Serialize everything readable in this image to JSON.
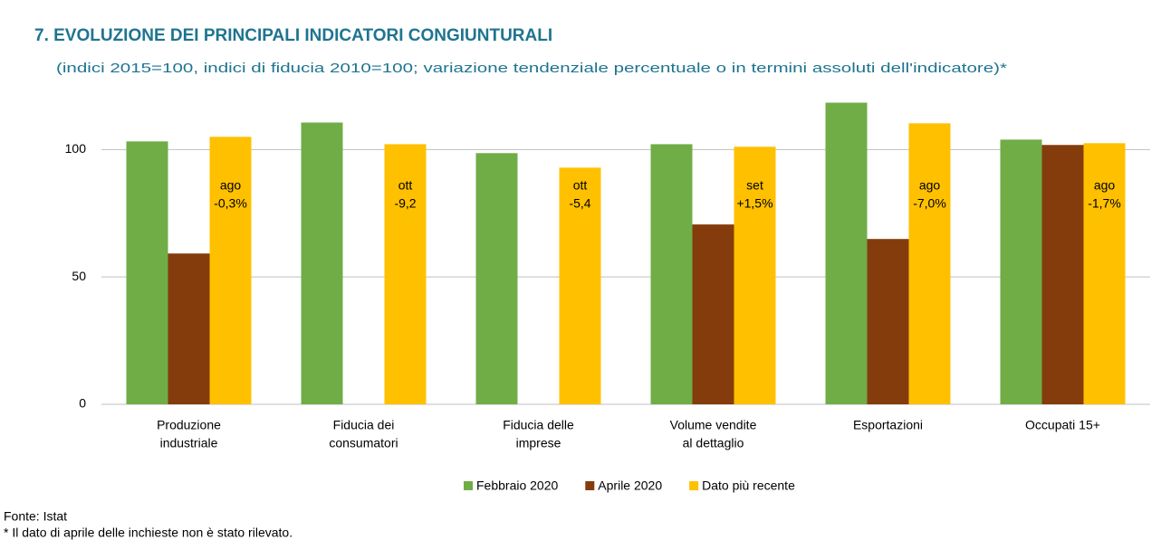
{
  "chart_data": {
    "type": "bar",
    "title": "7. EVOLUZIONE DEI PRINCIPALI INDICATORI CONGIUNTURALI",
    "subtitle": "(indici 2015=100, indici di fiducia 2010=100; variazione tendenziale percentuale o in termini assoluti dell'indicatore)*",
    "categories": [
      [
        "Produzione",
        "industriale"
      ],
      [
        "Fiducia dei",
        "consumatori"
      ],
      [
        "Fiducia delle",
        "imprese"
      ],
      [
        "Volume vendite",
        "al dettaglio"
      ],
      [
        "Esportazioni"
      ],
      [
        "Occupati 15+"
      ]
    ],
    "series": [
      {
        "name": "Febbraio 2020",
        "color": "#70ad47",
        "values": [
          103.2,
          110.6,
          98.6,
          102.1,
          118.4,
          103.9
        ]
      },
      {
        "name": "Aprile 2020",
        "color": "#843c0c",
        "values": [
          59.2,
          null,
          null,
          70.6,
          64.9,
          101.8
        ]
      },
      {
        "name": "Dato più recente",
        "color": "#ffc000",
        "values": [
          105.0,
          102.1,
          92.9,
          101.1,
          110.3,
          102.5
        ]
      }
    ],
    "annotations": [
      [
        "ago",
        "-0,3%"
      ],
      [
        "ott",
        "-9,2"
      ],
      [
        "ott",
        "-5,4"
      ],
      [
        "set",
        "+1,5%"
      ],
      [
        "ago",
        "-7,0%"
      ],
      [
        "ago",
        "-1,7%"
      ]
    ],
    "ylim": [
      0,
      120
    ],
    "yticks": [
      0,
      50,
      100
    ],
    "grid": true,
    "legend": "bottom",
    "source": "Fonte: Istat",
    "footnote": "* Il dato di aprile delle inchieste non è stato rilevato."
  }
}
